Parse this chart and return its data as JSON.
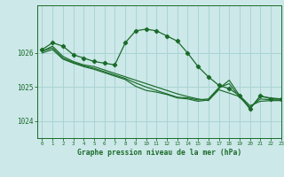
{
  "title": "Graphe pression niveau de la mer (hPa)",
  "bg_color": "#cce8e8",
  "grid_color": "#aad4d4",
  "line_color": "#1a6b2a",
  "xlim": [
    -0.5,
    23
  ],
  "ylim": [
    1023.5,
    1027.4
  ],
  "yticks": [
    1024,
    1025,
    1026
  ],
  "xticks": [
    0,
    1,
    2,
    3,
    4,
    5,
    6,
    7,
    8,
    9,
    10,
    11,
    12,
    13,
    14,
    15,
    16,
    17,
    18,
    19,
    20,
    21,
    22,
    23
  ],
  "series": [
    {
      "x": [
        0,
        1,
        2,
        3,
        4,
        5,
        6,
        7,
        8,
        9,
        10,
        11,
        12,
        13,
        14,
        15,
        16,
        17,
        18,
        19,
        20,
        21,
        22,
        23
      ],
      "y": [
        1026.1,
        1026.3,
        1026.2,
        1025.95,
        1025.85,
        1025.75,
        1025.7,
        1025.65,
        1026.3,
        1026.65,
        1026.7,
        1026.65,
        1026.5,
        1026.35,
        1026.0,
        1025.6,
        1025.3,
        1025.05,
        1024.95,
        1024.75,
        1024.35,
        1024.75,
        1024.65,
        1024.65
      ],
      "marker": true
    },
    {
      "x": [
        0,
        1,
        2,
        3,
        4,
        5,
        6,
        7,
        8,
        9,
        10,
        11,
        12,
        13,
        14,
        15,
        16,
        17,
        18,
        19,
        20,
        21,
        22,
        23
      ],
      "y": [
        1026.05,
        1026.2,
        1025.9,
        1025.75,
        1025.65,
        1025.6,
        1025.5,
        1025.4,
        1025.3,
        1025.2,
        1025.1,
        1025.0,
        1024.9,
        1024.8,
        1024.72,
        1024.65,
        1024.6,
        1024.92,
        1024.82,
        1024.72,
        1024.38,
        1024.72,
        1024.68,
        1024.65
      ],
      "marker": false
    },
    {
      "x": [
        0,
        1,
        2,
        3,
        4,
        5,
        6,
        7,
        8,
        9,
        10,
        11,
        12,
        13,
        14,
        15,
        16,
        17,
        18,
        19,
        20,
        21,
        22,
        23
      ],
      "y": [
        1026.05,
        1026.15,
        1025.85,
        1025.72,
        1025.62,
        1025.55,
        1025.45,
        1025.35,
        1025.25,
        1025.12,
        1025.0,
        1024.9,
        1024.8,
        1024.7,
        1024.68,
        1024.62,
        1024.65,
        1024.98,
        1025.1,
        1024.7,
        1024.4,
        1024.65,
        1024.62,
        1024.62
      ],
      "marker": false
    },
    {
      "x": [
        0,
        1,
        2,
        3,
        4,
        5,
        6,
        7,
        8,
        9,
        10,
        11,
        12,
        13,
        14,
        15,
        16,
        17,
        18,
        19,
        20,
        21,
        22,
        23
      ],
      "y": [
        1026.0,
        1026.1,
        1025.82,
        1025.7,
        1025.6,
        1025.52,
        1025.42,
        1025.32,
        1025.22,
        1025.02,
        1024.9,
        1024.85,
        1024.78,
        1024.68,
        1024.65,
        1024.58,
        1024.62,
        1024.95,
        1025.2,
        1024.75,
        1024.45,
        1024.58,
        1024.6,
        1024.6
      ],
      "marker": false
    }
  ]
}
